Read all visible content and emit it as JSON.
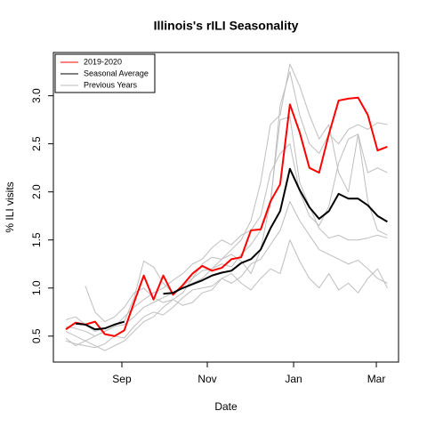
{
  "chart_data": {
    "type": "line",
    "title": "Illinois's rILI Seasonality",
    "xlabel": "Date",
    "ylabel": "% ILI visits",
    "x": [
      0,
      1,
      2,
      3,
      4,
      5,
      6,
      7,
      8,
      9,
      10,
      11,
      12,
      13,
      14,
      15,
      16,
      17,
      18,
      19,
      20,
      21,
      22,
      23,
      24,
      25,
      26,
      27,
      28,
      29,
      30,
      31,
      32,
      33
    ],
    "xlim": [
      -1.28,
      34.15
    ],
    "xticks": [
      {
        "value": 5.75,
        "label": "Sep"
      },
      {
        "value": 14.52,
        "label": "Nov"
      },
      {
        "value": 23.38,
        "label": "Jan"
      },
      {
        "value": 31.87,
        "label": "Mar"
      }
    ],
    "ylim": [
      0.23,
      3.45
    ],
    "yticks": [
      0.5,
      {
        "value": 1,
        "label": "1.0"
      },
      1.5,
      {
        "value": 2,
        "label": "2.0"
      },
      2.5,
      {
        "value": 3,
        "label": "3.0"
      }
    ],
    "legend": "top-left",
    "background_series": {
      "name": "Previous Years",
      "color": "#bebebe",
      "lines": [
        [
          0.48,
          0.4,
          0.45,
          0.5,
          0.55,
          0.6,
          0.62,
          0.7,
          0.8,
          0.85,
          0.9,
          0.95,
          1.0,
          1.05,
          1.1,
          1.2,
          1.3,
          1.4,
          1.5,
          1.7,
          2.1,
          2.7,
          2.8,
          3.33,
          3.1,
          2.8,
          2.55,
          2.7,
          2.2,
          2.0,
          2.6,
          1.9,
          1.6,
          1.55
        ],
        [
          0.67,
          0.7,
          0.62,
          0.55,
          0.58,
          0.62,
          0.65,
          0.9,
          1.28,
          1.22,
          1.05,
          0.95,
          1.02,
          1.1,
          1.25,
          1.32,
          1.3,
          1.35,
          1.28,
          1.15,
          1.4,
          1.9,
          2.75,
          2.78,
          2.1,
          1.85,
          1.62,
          1.52,
          1.55,
          1.5,
          1.5,
          1.52,
          1.55,
          1.52
        ],
        [
          null,
          null,
          1.02,
          0.75,
          0.65,
          0.7,
          0.8,
          0.95,
          1.0,
          0.9,
          0.85,
          0.88,
          0.95,
          1.1,
          1.18,
          1.2,
          1.25,
          1.22,
          1.35,
          1.45,
          1.6,
          1.85,
          2.9,
          3.25,
          2.8,
          2.5,
          2.4,
          2.6,
          2.5,
          2.65,
          2.7,
          2.65,
          2.72,
          2.7
        ],
        [
          0.45,
          0.42,
          0.4,
          0.38,
          0.42,
          0.5,
          0.48,
          0.6,
          0.7,
          0.75,
          0.72,
          0.8,
          0.9,
          0.98,
          1.0,
          1.02,
          1.1,
          1.15,
          1.05,
          0.98,
          1.1,
          1.2,
          1.15,
          1.5,
          1.28,
          1.1,
          1.0,
          1.15,
          0.98,
          1.05,
          0.95,
          1.1,
          1.2,
          1.0
        ],
        [
          0.55,
          0.5,
          0.45,
          0.4,
          0.35,
          0.4,
          0.45,
          0.55,
          0.65,
          0.7,
          0.8,
          0.88,
          0.82,
          0.85,
          0.95,
          0.98,
          1.1,
          1.05,
          1.12,
          1.25,
          1.3,
          1.45,
          1.6,
          1.9,
          1.7,
          1.55,
          1.4,
          1.35,
          1.3,
          1.25,
          1.29,
          1.2,
          1.1,
          1.05
        ],
        [
          0.6,
          0.58,
          0.55,
          0.5,
          0.55,
          0.6,
          0.7,
          0.8,
          0.88,
          0.95,
          1.0,
          1.08,
          1.15,
          1.25,
          1.3,
          1.42,
          1.5,
          1.45,
          1.55,
          1.6,
          1.75,
          2.2,
          2.4,
          2.5,
          2.0,
          1.75,
          1.65,
          1.85,
          2.3,
          2.55,
          2.6,
          2.2,
          2.25,
          2.2
        ]
      ]
    },
    "series": [
      {
        "name": "2019-2020",
        "color": "#ff0000",
        "values": [
          0.57,
          0.64,
          0.62,
          0.65,
          0.52,
          0.5,
          0.56,
          0.85,
          1.13,
          0.88,
          1.13,
          0.93,
          1.03,
          1.15,
          1.23,
          1.18,
          1.21,
          1.3,
          1.32,
          1.6,
          1.61,
          1.9,
          2.08,
          2.91,
          2.62,
          2.25,
          2.2,
          2.6,
          2.95,
          2.97,
          2.98,
          2.8,
          2.43,
          2.47
        ]
      },
      {
        "name": "Seasonal Average",
        "color": "#000000",
        "values": [
          null,
          0.63,
          0.62,
          0.57,
          0.58,
          0.62,
          0.65,
          null,
          null,
          null,
          0.94,
          0.95,
          1.0,
          1.04,
          1.08,
          1.13,
          1.16,
          1.18,
          1.26,
          1.3,
          1.4,
          1.62,
          1.8,
          2.24,
          2.02,
          1.84,
          1.72,
          1.8,
          1.98,
          1.93,
          1.93,
          1.86,
          1.75,
          1.69
        ]
      }
    ]
  }
}
